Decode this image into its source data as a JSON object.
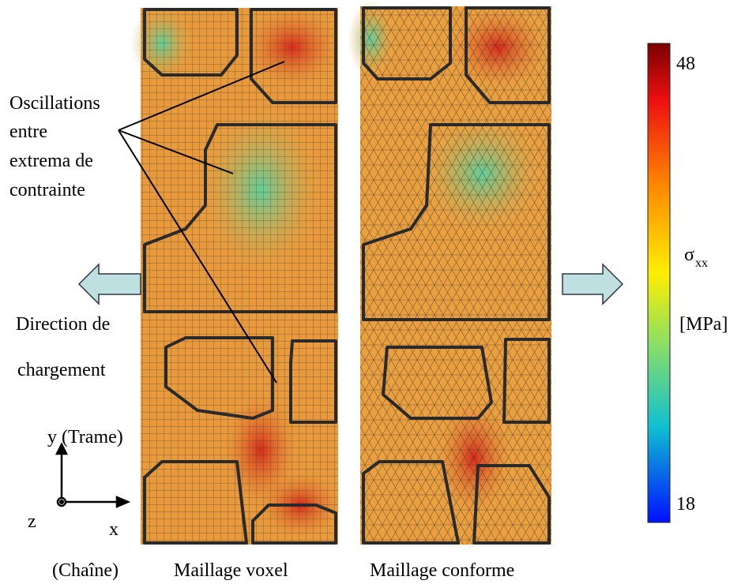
{
  "annotation": {
    "lines": [
      "Oscillations",
      "entre",
      "extrema de",
      "contrainte"
    ]
  },
  "loading": {
    "lines": [
      "Direction de",
      "chargement"
    ]
  },
  "axes": {
    "y_label": "y (Trame)",
    "z_label": "z",
    "x_label": "x",
    "x_note": "(Chaîne)"
  },
  "captions": {
    "left": "Maillage voxel",
    "right": "Maillage conforme"
  },
  "colorbar": {
    "max": "48",
    "min": "18",
    "symbol": "σ",
    "subscript": "xx",
    "unit": "[MPa]"
  }
}
